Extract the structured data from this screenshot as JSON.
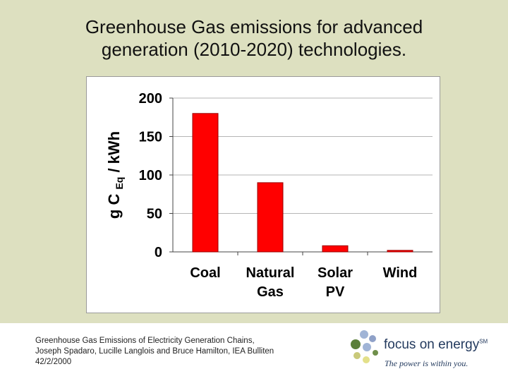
{
  "slide": {
    "title_line1": "Greenhouse Gas emissions for advanced",
    "title_line2": "generation (2010-2020) technologies."
  },
  "chart_data": {
    "type": "bar",
    "categories": [
      [
        "Coal"
      ],
      [
        "Natural",
        "Gas"
      ],
      [
        "Solar",
        "PV"
      ],
      [
        "Wind"
      ]
    ],
    "values": [
      180,
      90,
      8,
      2
    ],
    "title": "",
    "xlabel": "",
    "ylabel": {
      "main": "g C",
      "subscript": "Eq",
      "unit": "/ kWh"
    },
    "ylim": [
      0,
      200
    ],
    "yticks": [
      0,
      50,
      100,
      150,
      200
    ],
    "grid": true,
    "legend": "none",
    "bar_color": "#ff0000",
    "bar_edge_color": "#990000"
  },
  "citation": {
    "line1": "Greenhouse Gas Emissions of Electricity Generation Chains,",
    "line2": "Joseph Spadaro, Lucille Langlois and Bruce Hamilton, IEA Bulliten",
    "line3": "42/2/2000"
  },
  "logo": {
    "name": "focus on energy",
    "trademark": "SM",
    "tagline": "The power is within you.",
    "colors": [
      "#5b7f3a",
      "#a0b4d6",
      "#c9c97a",
      "#e3e08a",
      "#8fa1c8",
      "#6f8f4a"
    ]
  },
  "colors": {
    "background": "#dde0c0",
    "panel": "#ffffff",
    "brand_text": "#233a5e"
  }
}
